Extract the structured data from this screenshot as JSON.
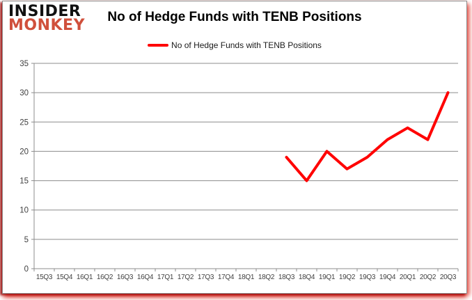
{
  "logo": {
    "line1": "INSIDER",
    "line2": "MONKEY"
  },
  "title": "No of Hedge Funds with TENB Positions",
  "legend": {
    "label": "No of Hedge Funds with TENB Positions"
  },
  "chart_data": {
    "type": "line",
    "title": "No of Hedge Funds with TENB Positions",
    "categories": [
      "15Q3",
      "15Q4",
      "16Q1",
      "16Q2",
      "16Q3",
      "16Q4",
      "17Q1",
      "17Q2",
      "17Q3",
      "17Q4",
      "18Q1",
      "18Q2",
      "18Q3",
      "18Q4",
      "19Q1",
      "19Q2",
      "19Q3",
      "19Q4",
      "20Q1",
      "20Q2",
      "20Q3"
    ],
    "series": [
      {
        "name": "No of Hedge Funds with TENB Positions",
        "color": "#ff0000",
        "values": [
          null,
          null,
          null,
          null,
          null,
          null,
          null,
          null,
          null,
          null,
          null,
          null,
          19,
          15,
          20,
          17,
          19,
          22,
          24,
          22,
          30
        ]
      }
    ],
    "ylim": [
      0,
      35
    ],
    "yticks": [
      0,
      5,
      10,
      15,
      20,
      25,
      30,
      35
    ],
    "xlabel": "",
    "ylabel": "",
    "grid": true,
    "legend_position": "top"
  },
  "colors": {
    "line": "#ff0000",
    "logo_accent": "#d0503c",
    "grid": "#8c8c8c",
    "axis_text": "#3f3f3f",
    "title_text": "#000000",
    "frame_border": "#8c8c8c"
  }
}
